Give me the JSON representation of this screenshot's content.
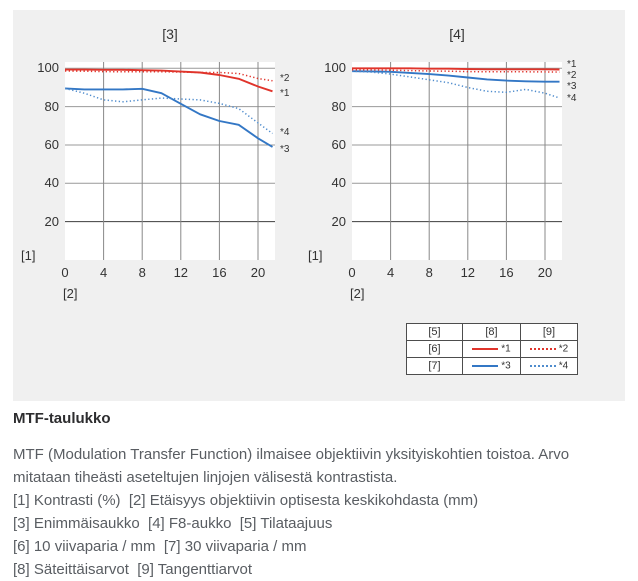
{
  "colors": {
    "panel_bg": "#f0f0f0",
    "plot_bg": "#ffffff",
    "red": "#e0342b",
    "blue": "#3377c5",
    "blue_dotted": "#4f8ccd",
    "grid": "#999999",
    "grid_dark": "#3d3d3d",
    "grid_vertical": "#888888",
    "axis_text": "#333333"
  },
  "chart_data": {
    "type": "line",
    "title": "MTF charts",
    "xlabel": "[2]",
    "ylabel": "[1]",
    "x_ticks": [
      0,
      4,
      8,
      12,
      16,
      20
    ],
    "y_ticks": [
      100,
      80,
      60,
      40,
      20
    ],
    "xlim": [
      0,
      21.8
    ],
    "ylim": [
      0,
      103.5
    ],
    "grid": true,
    "legend_position": "bottom-right",
    "x": [
      0,
      2,
      4,
      6,
      8,
      10,
      12,
      14,
      16,
      18,
      20,
      21.5
    ],
    "charts": [
      {
        "title": "[3]",
        "series": [
          {
            "name": "*1",
            "style": "solid",
            "color_key": "red",
            "label_value": 86.6,
            "values": [
              99.3,
              99.3,
              99.2,
              99.2,
              99,
              98.8,
              98.3,
              97.8,
              96.5,
              94.5,
              90.5,
              88
            ]
          },
          {
            "name": "*2",
            "style": "dotted",
            "color_key": "red",
            "label_value": 94.4,
            "values": [
              98.6,
              98.5,
              98.3,
              98.2,
              98.2,
              98.2,
              98,
              97.8,
              97.8,
              97.3,
              94.7,
              93.5
            ]
          },
          {
            "name": "*3",
            "style": "solid",
            "color_key": "blue",
            "label_value": 57.5,
            "values": [
              89.5,
              89,
              89,
              89,
              89.3,
              87,
              81.5,
              76,
              72.5,
              70.5,
              63.5,
              59
            ]
          },
          {
            "name": "*4",
            "style": "dotted",
            "color_key": "blue_dotted",
            "label_value": 66,
            "values": [
              89.5,
              87,
              83.5,
              82.5,
              83.5,
              84.5,
              84,
              83.5,
              81.7,
              79,
              71.5,
              66
            ]
          }
        ]
      },
      {
        "title": "[4]",
        "series": [
          {
            "name": "*1",
            "style": "solid",
            "color_key": "red",
            "label_value": 101.7,
            "values": [
              100,
              100,
              100,
              100,
              99.8,
              99.8,
              99.6,
              99.5,
              99.5,
              99.5,
              99.5,
              99.4
            ]
          },
          {
            "name": "*2",
            "style": "dotted",
            "color_key": "red",
            "label_value": 96.2,
            "values": [
              99.2,
              99.2,
              99,
              98.8,
              98.6,
              98.5,
              98.3,
              98.2,
              98.2,
              98.2,
              98.1,
              98
            ]
          },
          {
            "name": "*3",
            "style": "solid",
            "color_key": "blue",
            "label_value": 90.5,
            "values": [
              98.5,
              98.4,
              98.2,
              97.6,
              97,
              96.2,
              95.2,
              94.2,
              93.6,
              93.2,
              93,
              93
            ]
          },
          {
            "name": "*4",
            "style": "dotted",
            "color_key": "blue_dotted",
            "label_value": 84.2,
            "values": [
              98.5,
              98,
              97,
              95.5,
              94,
              92.5,
              90,
              88,
              87.5,
              89,
              87,
              84.5
            ]
          }
        ]
      }
    ]
  },
  "legend": {
    "headers": [
      "[5]",
      "[8]",
      "[9]"
    ],
    "rows": [
      {
        "label": "[6]",
        "solid_label": "*1",
        "dotted_label": "*2"
      },
      {
        "label": "[7]",
        "solid_label": "*3",
        "dotted_label": "*4"
      }
    ]
  },
  "text": {
    "heading": "MTF-taulukko",
    "paragraph": "MTF (Modulation Transfer Function) ilmaisee objektiivin yksityiskohtien toistoa. Arvo mitataan tiheästi aseteltujen linjojen välisestä kontrastista.",
    "definitions": [
      "[1] Kontrasti (%)  [2] Etäisyys objektiivin optisesta keskikohdasta (mm)",
      "[3] Enimmäisaukko  [4] F8-aukko  [5] Tilataajuus",
      "[6] 10 viivaparia / mm  [7] 30 viivaparia / mm",
      "[8] Säteittäisarvot  [9] Tangenttiarvot"
    ]
  }
}
